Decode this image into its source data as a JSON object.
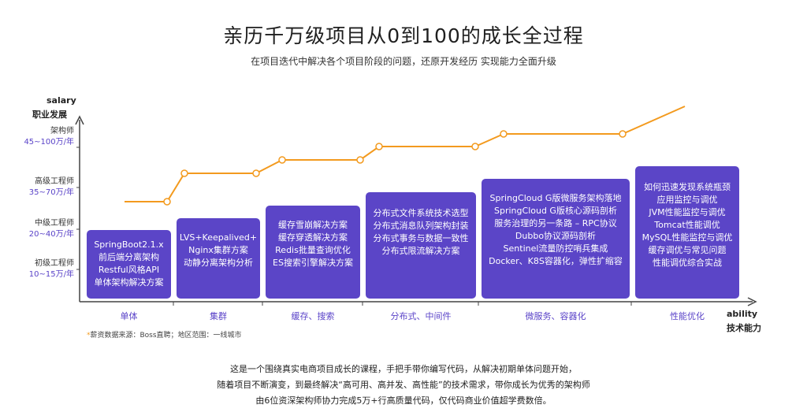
{
  "header": {
    "title": "亲历千万级项目从0到100的成长全过程",
    "subtitle": "在项目迭代中解决各个项目阶段的问题，还原开发经历 实现能力全面升级"
  },
  "axes": {
    "y_label_en": "salary",
    "y_label_zh": "职业发展",
    "x_label_en": "ability",
    "x_label_zh": "技术能力"
  },
  "levels": [
    {
      "name": "架构师",
      "salary": "45~100万/年"
    },
    {
      "name": "高级工程师",
      "salary": "35~70万/年"
    },
    {
      "name": "中级工程师",
      "salary": "20~40万/年"
    },
    {
      "name": "初级工程师",
      "salary": "10~15万/年"
    }
  ],
  "stages": [
    {
      "label": "单体",
      "lines": [
        "SpringBoot2.1.x",
        "前后端分离架构",
        "Restful风格API",
        "单体架构解决方案"
      ]
    },
    {
      "label": "集群",
      "lines": [
        "LVS+Keepalived+",
        "Nginx集群方案",
        "动静分离架构分析"
      ]
    },
    {
      "label": "缓存、搜索",
      "lines": [
        "缓存雪崩解决方案",
        "缓存穿透解决方案",
        "Redis批量查询优化",
        "ES搜索引擎解决方案"
      ]
    },
    {
      "label": "分布式、中间件",
      "lines": [
        "分布式文件系统技术选型",
        "分布式消息队列架构封装",
        "分布式事务与数据一致性",
        "分布式限流解决方案"
      ]
    },
    {
      "label": "微服务、容器化",
      "lines": [
        "SpringCloud G版微服务架构落地",
        "SpringCloud G版核心源码剖析",
        "服务治理的另一条路 – RPC协议",
        "Dubbo协议源码剖析",
        "Sentinel流量防控哨兵集成",
        "Docker、K8S容器化，弹性扩缩容"
      ]
    },
    {
      "label": "性能优化",
      "lines": [
        "如何迅速发现系统瓶颈",
        "应用监控与调优",
        "JVM性能监控与调优",
        "Tomcat性能调优",
        "MySQL性能监控与调优",
        "缓存调优与常见问题",
        "性能调优综合实战"
      ]
    }
  ],
  "footnote": {
    "star": "*",
    "text": "薪资数据来源：Boss直聘；地区范围：一线城市"
  },
  "description": [
    "这是一个围绕真实电商项目成长的课程，手把手带你编写代码，从解决初期单体问题开始，",
    "随着项目不断演变，到最终解决“高可用、高并发、高性能”的技术需求，带你成长为优秀的架构师",
    "由6位资深架构师协力完成5万+行高质量代码，仅代码商业价值超学费数倍。"
  ],
  "colors": {
    "box": "#5b45c7",
    "line": "#f39a1e",
    "axis": "#444444",
    "salary_text": "#5a43c8"
  }
}
